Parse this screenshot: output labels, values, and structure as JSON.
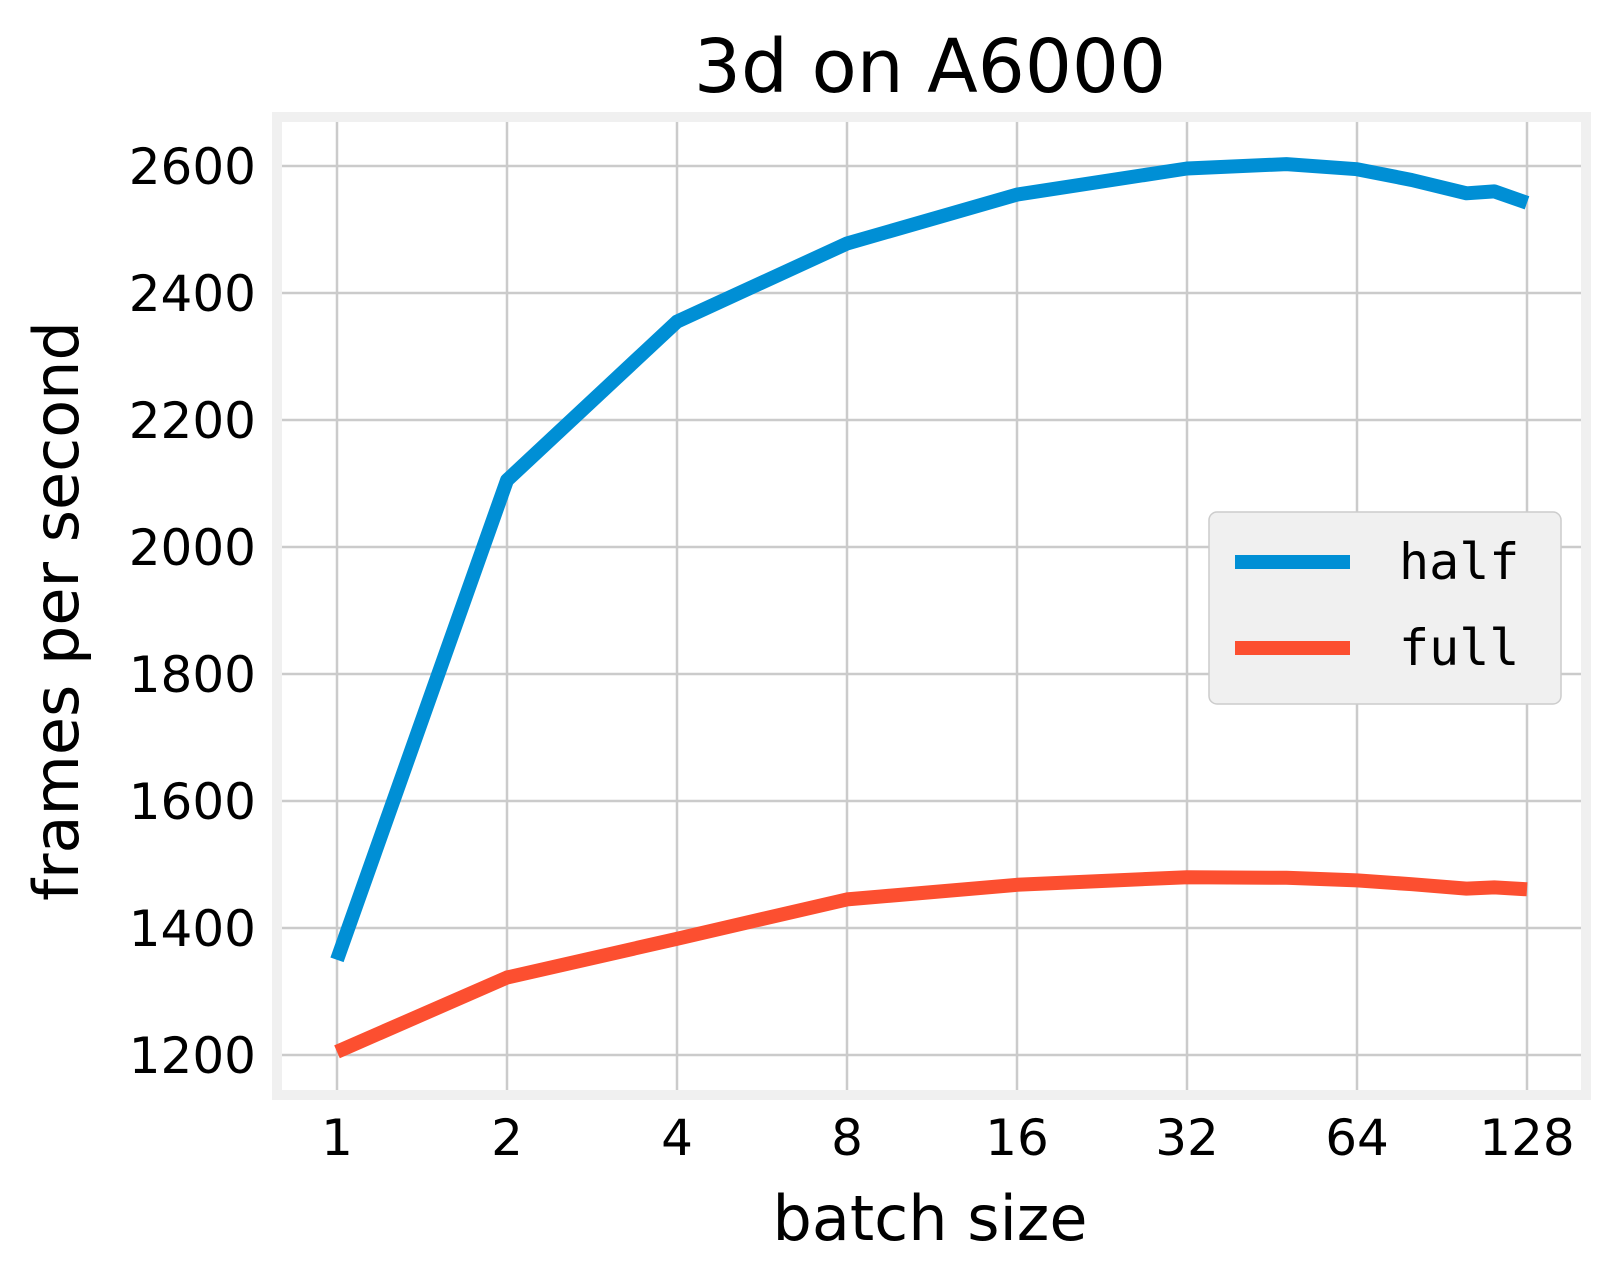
{
  "chart_data": {
    "type": "line",
    "title": "3d on A6000",
    "xlabel": "batch size",
    "ylabel": "frames per second",
    "x_scale": "log2",
    "x_ticks": [
      1,
      2,
      4,
      8,
      16,
      32,
      64,
      128
    ],
    "x_tick_labels": [
      "1",
      "2",
      "4",
      "8",
      "16",
      "32",
      "64",
      "128"
    ],
    "y_ticks": [
      1200,
      1400,
      1600,
      1800,
      2000,
      2200,
      2400,
      2600
    ],
    "y_tick_labels": [
      "1200",
      "1400",
      "1600",
      "1800",
      "2000",
      "2200",
      "2400",
      "2600"
    ],
    "xlim": [
      0.84,
      152
    ],
    "ylim": [
      1140,
      2670
    ],
    "grid": true,
    "legend_position": "center-right",
    "series": [
      {
        "name": "half",
        "color": "#008fd5",
        "x": [
          1,
          2,
          4,
          8,
          16,
          32,
          48,
          64,
          80,
          100,
          112,
          128
        ],
        "y": [
          1350,
          2105,
          2355,
          2478,
          2555,
          2596,
          2603,
          2595,
          2578,
          2557,
          2560,
          2542
        ]
      },
      {
        "name": "full",
        "color": "#fc4f30",
        "x": [
          1,
          2,
          4,
          8,
          16,
          32,
          48,
          64,
          80,
          100,
          112,
          128
        ],
        "y": [
          1205,
          1322,
          1383,
          1445,
          1468,
          1480,
          1479,
          1475,
          1469,
          1462,
          1464,
          1461
        ]
      }
    ]
  }
}
